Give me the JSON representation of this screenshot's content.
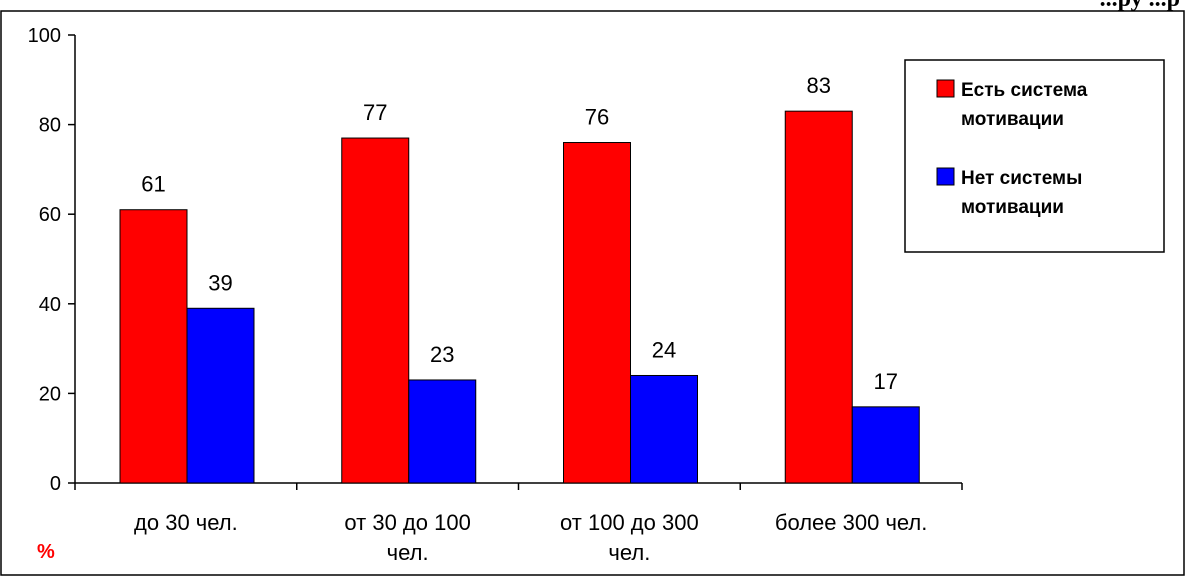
{
  "top_fragment": "...ру   ...р",
  "unit_label": "%",
  "colors": {
    "series1": "#ff0000",
    "series2": "#0000ff",
    "axis": "#000000",
    "background": "#ffffff"
  },
  "chart_data": {
    "type": "bar",
    "categories": [
      [
        "до 30 чел."
      ],
      [
        "от 30 до 100",
        "чел."
      ],
      [
        "от 100 до 300",
        "чел."
      ],
      [
        "более 300 чел."
      ]
    ],
    "series": [
      {
        "name": "Есть система мотивации",
        "legend_lines": [
          "Есть система",
          "мотивации"
        ],
        "values": [
          61,
          77,
          76,
          83
        ]
      },
      {
        "name": "Нет системы мотивации",
        "legend_lines": [
          "Нет системы",
          "мотивации"
        ],
        "values": [
          39,
          23,
          24,
          17
        ]
      }
    ],
    "ylim": [
      0,
      100
    ],
    "yticks": [
      0,
      20,
      40,
      60,
      80,
      100
    ],
    "grid": false,
    "legend_position": "top-right",
    "title": "",
    "xlabel": "",
    "ylabel": ""
  }
}
